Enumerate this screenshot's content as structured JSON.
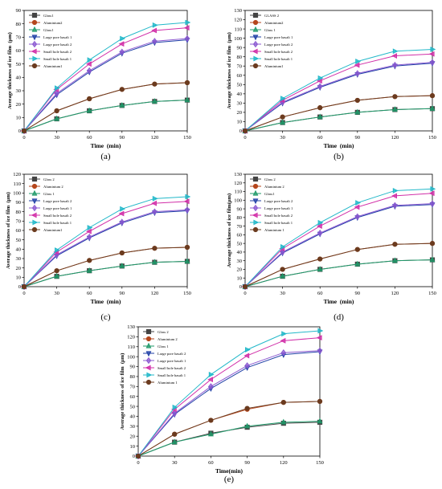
{
  "chart_data": [
    {
      "panel_label": "(a)",
      "type": "line",
      "x": [
        0,
        30,
        60,
        90,
        120,
        150
      ],
      "xticks": [
        0,
        30,
        60,
        90,
        120,
        150
      ],
      "xlim": [
        0,
        150
      ],
      "yticks": [
        0,
        10,
        20,
        30,
        40,
        50,
        60,
        70,
        80,
        90
      ],
      "ylim": [
        0,
        90
      ],
      "xlabel": "Time (min)",
      "ylabel": "Average thickness of ice film (μm)",
      "legend_position": "top-left",
      "series": [
        {
          "name": "Glass1",
          "color": "#444444",
          "marker": "square",
          "values": [
            0,
            9,
            15,
            19,
            22,
            23
          ]
        },
        {
          "name": "Aluminium2",
          "color": "#b5461c",
          "marker": "circle",
          "values": [
            0,
            15,
            24,
            31,
            35,
            36
          ]
        },
        {
          "name": "Glass1",
          "color": "#1f9a6a",
          "marker": "triangle",
          "values": [
            0,
            9,
            15,
            19,
            22,
            23
          ]
        },
        {
          "name": "Large pore basalt 1",
          "color": "#1f3fa6",
          "marker": "tri-down",
          "values": [
            0,
            27,
            44,
            58,
            66,
            68
          ]
        },
        {
          "name": "Large pore basalt 2",
          "color": "#8c5ad1",
          "marker": "diamond",
          "values": [
            0,
            28,
            45,
            59,
            67,
            69
          ]
        },
        {
          "name": "Small hole basalt 2",
          "color": "#d12fa8",
          "marker": "tri-left",
          "values": [
            0,
            31,
            50,
            65,
            75,
            77
          ]
        },
        {
          "name": "Small hole basalt 1",
          "color": "#22b8c9",
          "marker": "tri-right",
          "values": [
            0,
            32,
            53,
            69,
            79,
            81
          ]
        },
        {
          "name": "Aluminium1",
          "color": "#6b3b1f",
          "marker": "circle",
          "values": [
            0,
            15,
            24,
            31,
            35,
            36
          ]
        }
      ]
    },
    {
      "panel_label": "(b)",
      "type": "line",
      "x": [
        0,
        30,
        60,
        90,
        120,
        150
      ],
      "xticks": [
        0,
        30,
        60,
        90,
        120,
        150
      ],
      "xlim": [
        0,
        150
      ],
      "yticks": [
        0,
        10,
        20,
        30,
        40,
        50,
        60,
        70,
        80,
        90,
        100,
        110,
        120,
        130
      ],
      "ylim": [
        0,
        130
      ],
      "xlabel": "Time (min)",
      "ylabel": "Average thickness of ice film (μm)",
      "legend_position": "top-left",
      "series": [
        {
          "name": "GLASS 2",
          "color": "#444444",
          "marker": "square",
          "values": [
            0,
            9,
            15,
            20,
            23,
            24
          ]
        },
        {
          "name": "Aluminium2",
          "color": "#b5461c",
          "marker": "circle",
          "values": [
            0,
            15,
            25,
            33,
            37,
            38
          ]
        },
        {
          "name": "Glass 1",
          "color": "#1f9a6a",
          "marker": "triangle",
          "values": [
            0,
            9,
            15,
            20,
            23,
            24
          ]
        },
        {
          "name": "Large pore basalt 1",
          "color": "#1f3fa6",
          "marker": "tri-down",
          "values": [
            0,
            30,
            47,
            61,
            70,
            73
          ]
        },
        {
          "name": "Large pore basalt 2",
          "color": "#8c5ad1",
          "marker": "diamond",
          "values": [
            0,
            31,
            48,
            62,
            71,
            74
          ]
        },
        {
          "name": "Small hole basalt 2",
          "color": "#d12fa8",
          "marker": "tri-left",
          "values": [
            0,
            33,
            54,
            71,
            81,
            83
          ]
        },
        {
          "name": "Small hole basalt 1",
          "color": "#22b8c9",
          "marker": "tri-right",
          "values": [
            0,
            35,
            57,
            75,
            86,
            88
          ]
        },
        {
          "name": "Aluminium1",
          "color": "#6b3b1f",
          "marker": "circle",
          "values": [
            0,
            15,
            25,
            33,
            37,
            38
          ]
        }
      ]
    },
    {
      "panel_label": "(c)",
      "type": "line",
      "x": [
        0,
        30,
        60,
        90,
        120,
        150
      ],
      "xticks": [
        0,
        30,
        60,
        90,
        120,
        150
      ],
      "xlim": [
        0,
        150
      ],
      "yticks": [
        0,
        10,
        20,
        30,
        40,
        50,
        60,
        70,
        80,
        90,
        100,
        110,
        120
      ],
      "ylim": [
        0,
        120
      ],
      "xlabel": "Time (min)",
      "ylabel": "Average thickness of ice film (μm)",
      "legend_position": "top-left",
      "series": [
        {
          "name": "Glass 2",
          "color": "#444444",
          "marker": "square",
          "values": [
            0,
            11,
            17,
            22,
            26,
            27
          ]
        },
        {
          "name": "Aluminium 2",
          "color": "#b5461c",
          "marker": "circle",
          "values": [
            0,
            17,
            28,
            36,
            41,
            42
          ]
        },
        {
          "name": "Glass 1",
          "color": "#1f9a6a",
          "marker": "triangle",
          "values": [
            0,
            11,
            17,
            22,
            26,
            27
          ]
        },
        {
          "name": "Large pore basalt 2",
          "color": "#1f3fa6",
          "marker": "tri-down",
          "values": [
            0,
            33,
            52,
            68,
            79,
            81
          ]
        },
        {
          "name": "Large pore basalt 1",
          "color": "#8c5ad1",
          "marker": "diamond",
          "values": [
            0,
            34,
            53,
            69,
            80,
            82
          ]
        },
        {
          "name": "Small hole basalt 2",
          "color": "#d12fa8",
          "marker": "tri-left",
          "values": [
            0,
            37,
            59,
            78,
            89,
            91
          ]
        },
        {
          "name": "Small hole basalt 1",
          "color": "#22b8c9",
          "marker": "tri-right",
          "values": [
            0,
            39,
            63,
            83,
            94,
            96
          ]
        },
        {
          "name": "Aluminium1",
          "color": "#6b3b1f",
          "marker": "circle",
          "values": [
            0,
            17,
            28,
            36,
            41,
            42
          ]
        }
      ]
    },
    {
      "panel_label": "(d)",
      "type": "line",
      "x": [
        0,
        30,
        60,
        90,
        120,
        150
      ],
      "xticks": [
        0,
        30,
        60,
        90,
        120,
        150
      ],
      "xlim": [
        0,
        150
      ],
      "yticks": [
        0,
        10,
        20,
        30,
        40,
        50,
        60,
        70,
        80,
        90,
        100,
        110,
        120,
        130
      ],
      "ylim": [
        0,
        130
      ],
      "xlabel": "Time (min)",
      "ylabel": "Average thickness of ice film(μm)",
      "legend_position": "top-left",
      "series": [
        {
          "name": "Glass 2",
          "color": "#444444",
          "marker": "square",
          "values": [
            0,
            12,
            20,
            26,
            30,
            31
          ]
        },
        {
          "name": "Aluminium 2",
          "color": "#b5461c",
          "marker": "circle",
          "values": [
            0,
            20,
            32,
            43,
            49,
            50
          ]
        },
        {
          "name": "Glass1",
          "color": "#1f9a6a",
          "marker": "triangle",
          "values": [
            0,
            12,
            20,
            26,
            30,
            31
          ]
        },
        {
          "name": "Large pore basalt 2",
          "color": "#1f3fa6",
          "marker": "tri-down",
          "values": [
            0,
            39,
            61,
            80,
            93,
            95
          ]
        },
        {
          "name": "Large pore basalt 1",
          "color": "#8c5ad1",
          "marker": "diamond",
          "values": [
            0,
            40,
            62,
            81,
            94,
            96
          ]
        },
        {
          "name": "Small hole basalt 2",
          "color": "#d12fa8",
          "marker": "tri-left",
          "values": [
            0,
            44,
            70,
            92,
            105,
            108
          ]
        },
        {
          "name": "Small hole basalt 1",
          "color": "#22b8c9",
          "marker": "tri-right",
          "values": [
            0,
            46,
            74,
            97,
            111,
            113
          ]
        },
        {
          "name": "Aluminium 1",
          "color": "#6b3b1f",
          "marker": "circle",
          "values": [
            0,
            20,
            32,
            43,
            49,
            50
          ]
        }
      ]
    },
    {
      "panel_label": "(e)",
      "type": "line",
      "x": [
        0,
        30,
        60,
        90,
        120,
        150
      ],
      "xticks": [
        0,
        30,
        60,
        90,
        120,
        150
      ],
      "xlim": [
        0,
        150
      ],
      "yticks": [
        0,
        10,
        20,
        30,
        40,
        50,
        60,
        70,
        80,
        90,
        100,
        110,
        120,
        130
      ],
      "ylim": [
        0,
        130
      ],
      "xlabel": "Time(min)",
      "ylabel": "Average thickness of ice film (μm)",
      "legend_position": "top-left",
      "series": [
        {
          "name": "Glass 2",
          "color": "#444444",
          "marker": "square",
          "values": [
            0,
            14,
            23,
            29,
            33,
            34
          ]
        },
        {
          "name": "Aluminium 2",
          "color": "#b5461c",
          "marker": "circle",
          "values": [
            0,
            22,
            36,
            47,
            54,
            55
          ]
        },
        {
          "name": "Glass 1",
          "color": "#1f9a6a",
          "marker": "triangle",
          "values": [
            0,
            14,
            22,
            30,
            34,
            35
          ]
        },
        {
          "name": "Large pore basalt 2",
          "color": "#1f3fa6",
          "marker": "tri-down",
          "values": [
            0,
            42,
            68,
            89,
            102,
            105
          ]
        },
        {
          "name": "Large pore basalt 1",
          "color": "#8c5ad1",
          "marker": "diamond",
          "values": [
            0,
            43,
            70,
            91,
            104,
            106
          ]
        },
        {
          "name": "Small hole basalt 2",
          "color": "#d12fa8",
          "marker": "tri-left",
          "values": [
            0,
            47,
            77,
            101,
            116,
            119
          ]
        },
        {
          "name": "Small hole basalt 1",
          "color": "#22b8c9",
          "marker": "tri-right",
          "values": [
            0,
            49,
            82,
            107,
            123,
            126
          ]
        },
        {
          "name": "Aluminium 1",
          "color": "#6b3b1f",
          "marker": "circle",
          "values": [
            0,
            22,
            36,
            48,
            54,
            55
          ]
        }
      ]
    }
  ]
}
